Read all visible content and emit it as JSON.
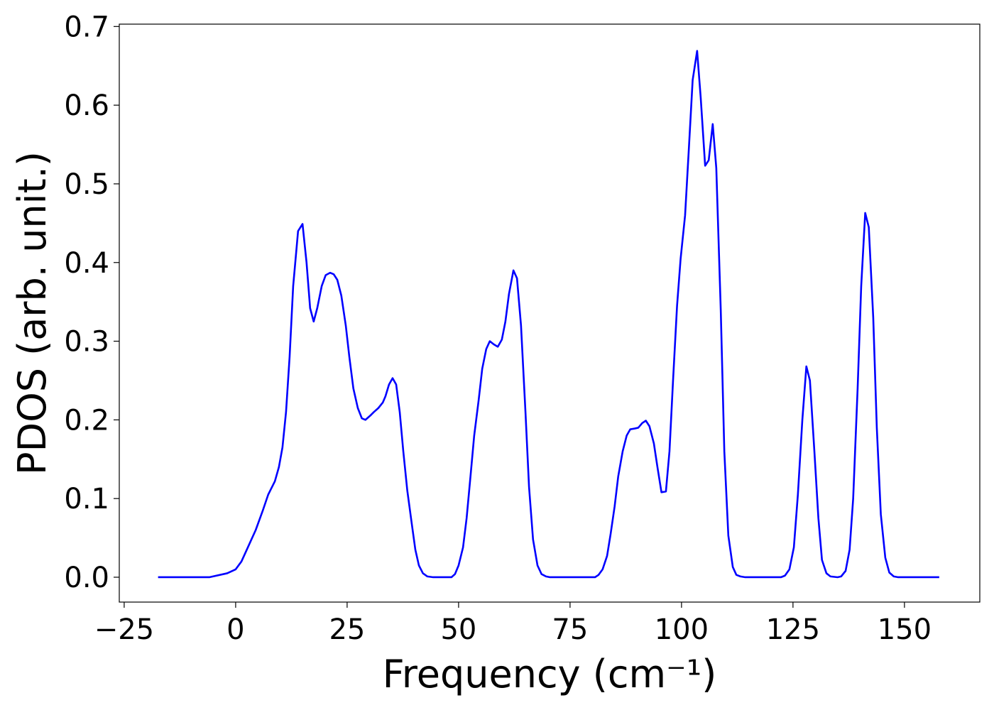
{
  "chart_data": {
    "type": "line",
    "xlabel": "Frequency (cm⁻¹)",
    "ylabel": "PDOS (arb. unit.)",
    "xlim": [
      -26.1,
      166.9
    ],
    "ylim": [
      -0.0316,
      0.703
    ],
    "xticks": [
      {
        "value": -25,
        "label": "−25"
      },
      0,
      25,
      50,
      75,
      100,
      125,
      150
    ],
    "yticks": [
      {
        "value": 0,
        "label": "0.0"
      },
      0.1,
      0.2,
      0.3,
      0.4,
      0.5,
      0.6,
      0.7
    ],
    "grid": false,
    "series": [
      {
        "color": "#0000ff",
        "x": [
          -17.4,
          -5.9,
          -1.9,
          0,
          1.3,
          2.9,
          4.5,
          6.1,
          7.3,
          8.8,
          9.7,
          10.5,
          11.3,
          12.1,
          12.9,
          14,
          15,
          15.9,
          16.7,
          17.5,
          18.3,
          19.3,
          20.2,
          21.2,
          22,
          22.8,
          23.7,
          24.7,
          25.5,
          26.4,
          27.4,
          28.3,
          29.1,
          30.3,
          31,
          32,
          33,
          33.6,
          34.4,
          35.2,
          36,
          36.8,
          37.6,
          38.5,
          39.5,
          40.3,
          41.1,
          42,
          43,
          44.3,
          48.4,
          49.2,
          50,
          51,
          51.8,
          52.7,
          53.5,
          54.5,
          55.3,
          56.2,
          57,
          57.9,
          58.8,
          59.7,
          60.5,
          61.3,
          62.3,
          63.1,
          64,
          65,
          65.8,
          66.7,
          67.7,
          68.6,
          69.6,
          70.5,
          80.6,
          81.4,
          82.3,
          83.3,
          84.1,
          85,
          85.8,
          86.8,
          87.7,
          88.5,
          89.5,
          90.3,
          91.2,
          92,
          92.8,
          93.8,
          94.6,
          95.5,
          96.5,
          97.3,
          98.1,
          99,
          99.8,
          100.8,
          101.6,
          102.5,
          103.5,
          104.3,
          105.3,
          106.1,
          107,
          107.8,
          108.8,
          109.6,
          110.5,
          111.5,
          112.3,
          113.2,
          114.3,
          122.3,
          123.2,
          124.2,
          125.2,
          126.1,
          127.1,
          128,
          128.8,
          129.8,
          130.7,
          131.5,
          132.5,
          133.4,
          135,
          135.8,
          136.8,
          137.7,
          138.5,
          139.5,
          140.3,
          141.2,
          142,
          143,
          143.8,
          144.7,
          145.7,
          146.6,
          147.6,
          148.6,
          157.8
        ],
        "values": [
          0,
          0,
          0.005,
          0.01,
          0.02,
          0.04,
          0.06,
          0.085,
          0.105,
          0.122,
          0.14,
          0.165,
          0.21,
          0.28,
          0.37,
          0.44,
          0.449,
          0.4,
          0.342,
          0.325,
          0.342,
          0.37,
          0.384,
          0.387,
          0.385,
          0.378,
          0.358,
          0.32,
          0.28,
          0.24,
          0.215,
          0.202,
          0.2,
          0.206,
          0.21,
          0.215,
          0.222,
          0.23,
          0.245,
          0.253,
          0.245,
          0.21,
          0.16,
          0.11,
          0.068,
          0.035,
          0.015,
          0.005,
          0.001,
          0,
          0,
          0.004,
          0.015,
          0.038,
          0.075,
          0.13,
          0.18,
          0.225,
          0.265,
          0.29,
          0.3,
          0.296,
          0.293,
          0.302,
          0.325,
          0.36,
          0.39,
          0.38,
          0.32,
          0.21,
          0.115,
          0.048,
          0.015,
          0.004,
          0.001,
          0,
          0,
          0.003,
          0.01,
          0.027,
          0.055,
          0.09,
          0.128,
          0.16,
          0.18,
          0.188,
          0.189,
          0.19,
          0.196,
          0.199,
          0.192,
          0.17,
          0.14,
          0.108,
          0.109,
          0.16,
          0.25,
          0.345,
          0.405,
          0.46,
          0.54,
          0.632,
          0.669,
          0.61,
          0.523,
          0.53,
          0.576,
          0.52,
          0.34,
          0.16,
          0.053,
          0.013,
          0.003,
          0.001,
          0,
          0,
          0.002,
          0.01,
          0.038,
          0.105,
          0.2,
          0.268,
          0.25,
          0.16,
          0.075,
          0.022,
          0.005,
          0.001,
          0,
          0.001,
          0.008,
          0.035,
          0.1,
          0.24,
          0.37,
          0.463,
          0.445,
          0.33,
          0.19,
          0.08,
          0.025,
          0.006,
          0.001,
          0,
          0
        ]
      }
    ]
  }
}
